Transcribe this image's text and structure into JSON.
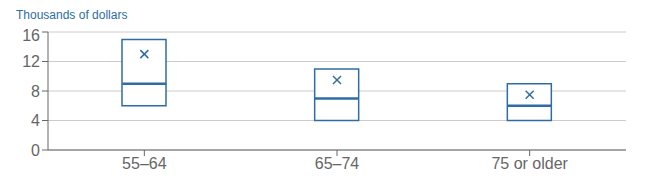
{
  "chart_data": {
    "type": "box",
    "ylabel": "Thousands of dollars",
    "categories": [
      "55–64",
      "65–74",
      "75 or older"
    ],
    "boxes": [
      {
        "q1": 6,
        "median": 9,
        "q3": 15,
        "mean": 13
      },
      {
        "q1": 4,
        "median": 7,
        "q3": 11,
        "mean": 9.5
      },
      {
        "q1": 4,
        "median": 6,
        "q3": 9,
        "mean": 7.5
      }
    ],
    "ylim": [
      0,
      16
    ],
    "yticks": [
      0,
      4,
      8,
      12,
      16
    ],
    "grid": true,
    "color": "#2e6da4",
    "marker": "x"
  }
}
